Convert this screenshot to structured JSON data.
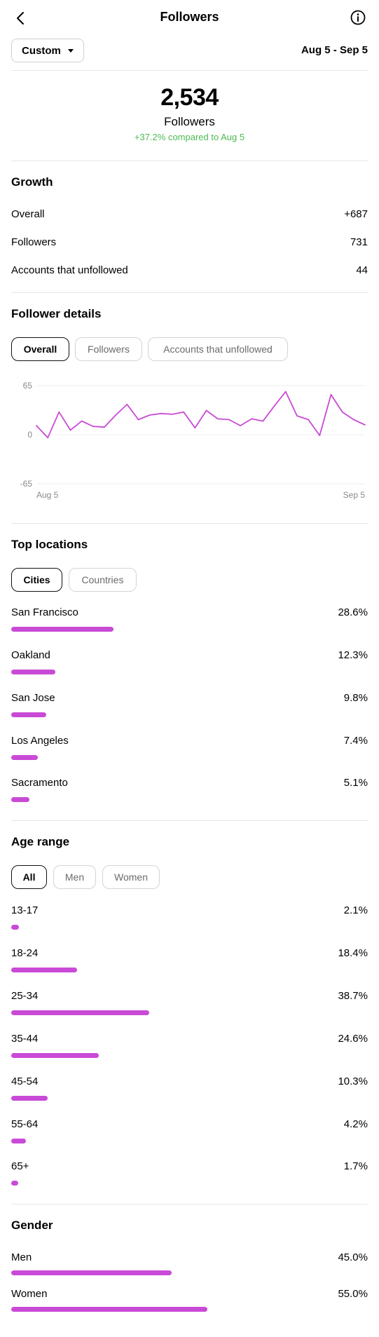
{
  "header": {
    "title": "Followers"
  },
  "filter": {
    "range": "Custom",
    "dates": "Aug 5 - Sep 5"
  },
  "summary": {
    "count": "2,534",
    "label": "Followers",
    "compare": "+37.2% compared to Aug 5"
  },
  "growth": {
    "title": "Growth",
    "rows": [
      {
        "label": "Overall",
        "value": "+687"
      },
      {
        "label": "Followers",
        "value": "731"
      },
      {
        "label": "Accounts that unfollowed",
        "value": "44"
      }
    ]
  },
  "follower_details": {
    "title": "Follower details",
    "tabs": [
      "Overall",
      "Followers",
      "Accounts that unfollowed"
    ],
    "active_tab": 0
  },
  "chart_data": {
    "type": "line",
    "series": [
      {
        "values": [
          12,
          -4,
          30,
          6,
          18,
          11,
          10,
          26,
          40,
          20,
          26,
          28,
          27,
          30,
          9,
          32,
          21,
          20,
          12,
          21,
          18,
          38,
          57,
          25,
          20,
          -1,
          53,
          30,
          20,
          13
        ]
      }
    ],
    "x_tick_labels": [
      "Aug 5",
      "Sep 5"
    ],
    "y_tick_labels": [
      "65",
      "0",
      "-65"
    ],
    "ylim": [
      -65,
      65
    ],
    "grid": true,
    "color": "#c94ad6"
  },
  "top_locations": {
    "title": "Top locations",
    "tabs": [
      "Cities",
      "Countries"
    ],
    "active_tab": 0,
    "items": [
      {
        "label": "San Francisco",
        "value": "28.6%",
        "fraction": 0.286
      },
      {
        "label": "Oakland",
        "value": "12.3%",
        "fraction": 0.123
      },
      {
        "label": "San Jose",
        "value": "9.8%",
        "fraction": 0.098
      },
      {
        "label": "Los Angeles",
        "value": "7.4%",
        "fraction": 0.074
      },
      {
        "label": "Sacramento",
        "value": "5.1%",
        "fraction": 0.051
      }
    ]
  },
  "age_range": {
    "title": "Age range",
    "tabs": [
      "All",
      "Men",
      "Women"
    ],
    "active_tab": 0,
    "items": [
      {
        "label": "13-17",
        "value": "2.1%",
        "fraction": 0.021
      },
      {
        "label": "18-24",
        "value": "18.4%",
        "fraction": 0.184
      },
      {
        "label": "25-34",
        "value": "38.7%",
        "fraction": 0.387
      },
      {
        "label": "35-44",
        "value": "24.6%",
        "fraction": 0.246
      },
      {
        "label": "45-54",
        "value": "10.3%",
        "fraction": 0.103
      },
      {
        "label": "55-64",
        "value": "4.2%",
        "fraction": 0.042
      },
      {
        "label": "65+",
        "value": "1.7%",
        "fraction": 0.017
      }
    ]
  },
  "gender": {
    "title": "Gender",
    "items": [
      {
        "label": "Men",
        "value": "45.0%",
        "fraction": 0.45
      },
      {
        "label": "Women",
        "value": "55.0%",
        "fraction": 0.55
      }
    ]
  },
  "colors": {
    "accent": "#c94ad6",
    "positive": "#4cbb52"
  }
}
